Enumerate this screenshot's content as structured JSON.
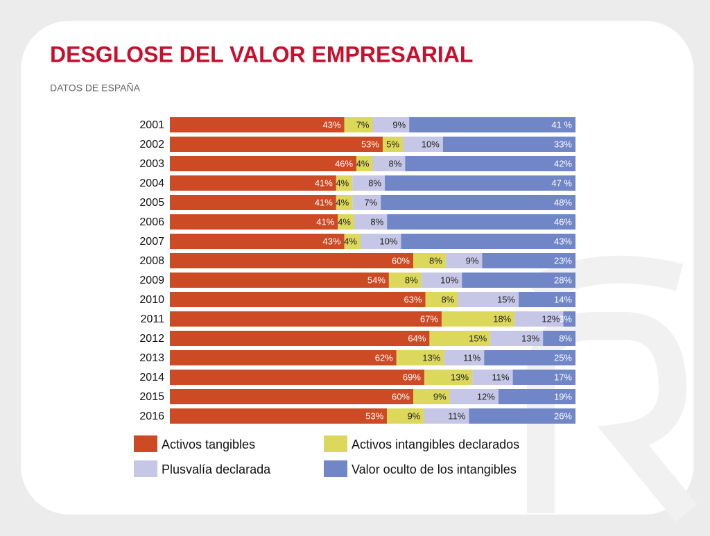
{
  "chart_data": {
    "type": "stacked_bar_horizontal",
    "title": "DESGLOSE DEL VALOR EMPRESARIAL",
    "subtitle": "DATOS DE ESPAÑA",
    "categories": [
      "2001",
      "2002",
      "2003",
      "2004",
      "2005",
      "2006",
      "2007",
      "2008",
      "2009",
      "2010",
      "2011",
      "2012",
      "2013",
      "2014",
      "2015",
      "2016"
    ],
    "series": [
      {
        "name": "Activos tangibles",
        "color": "#cc4a24",
        "values": [
          43,
          53,
          46,
          41,
          41,
          41,
          43,
          60,
          54,
          63,
          67,
          64,
          62,
          69,
          60,
          53
        ],
        "value_labels": [
          "43%",
          "53%",
          "46%",
          "41%",
          "41%",
          "41%",
          "43%",
          "60%",
          "54%",
          "63%",
          "67%",
          "64%",
          "62%",
          "69%",
          "60%",
          "53%"
        ]
      },
      {
        "name": "Activos intangibles declarados",
        "color": "#dcd85c",
        "values": [
          7,
          5,
          4,
          4,
          4,
          4,
          4,
          8,
          8,
          8,
          18,
          15,
          13,
          13,
          9,
          9
        ],
        "value_labels": [
          "7%",
          "5%",
          "4%",
          "4%",
          "4%",
          "4%",
          "4%",
          "8%",
          "8%",
          "8%",
          "18%",
          "15%",
          "13%",
          "13%",
          "9%",
          "9%"
        ]
      },
      {
        "name": "Plusvalía declarada",
        "color": "#c6c6e6",
        "values": [
          9,
          10,
          8,
          8,
          7,
          8,
          10,
          9,
          10,
          15,
          12,
          13,
          11,
          11,
          12,
          11
        ],
        "value_labels": [
          "9%",
          "10%",
          "8%",
          "8%",
          "7%",
          "8%",
          "10%",
          "9%",
          "10%",
          "15%",
          "12%",
          "13%",
          "11%",
          "11%",
          "12%",
          "11%"
        ]
      },
      {
        "name": "Valor oculto de los intangibles",
        "color": "#7086c6",
        "values": [
          41,
          33,
          42,
          47,
          48,
          46,
          43,
          23,
          28,
          14,
          3,
          8,
          25,
          17,
          19,
          26
        ],
        "value_labels": [
          "41 %",
          "33%",
          "42%",
          "47 %",
          "48%",
          "46%",
          "43%",
          "23%",
          "28%",
          "14%",
          "3%",
          "8%",
          "25%",
          "17%",
          "19%",
          "26%"
        ]
      }
    ]
  }
}
